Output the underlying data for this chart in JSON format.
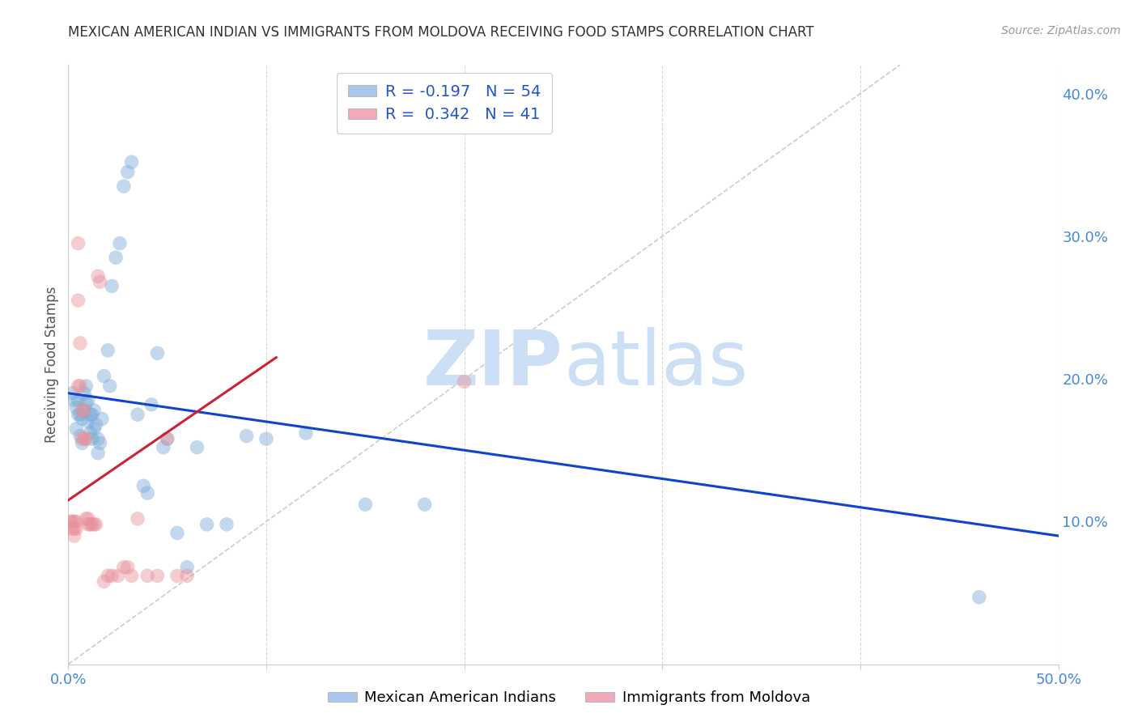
{
  "title": "MEXICAN AMERICAN INDIAN VS IMMIGRANTS FROM MOLDOVA RECEIVING FOOD STAMPS CORRELATION CHART",
  "source": "Source: ZipAtlas.com",
  "ylabel": "Receiving Food Stamps",
  "xlim": [
    0.0,
    0.5
  ],
  "ylim": [
    0.0,
    0.42
  ],
  "xticks": [
    0.0,
    0.1,
    0.2,
    0.3,
    0.4,
    0.5
  ],
  "xtick_labels": [
    "0.0%",
    "",
    "",
    "",
    "",
    "50.0%"
  ],
  "yticks": [
    0.1,
    0.2,
    0.3,
    0.4
  ],
  "ytick_labels": [
    "10.0%",
    "20.0%",
    "30.0%",
    "40.0%"
  ],
  "background_color": "#ffffff",
  "grid_color": "#d8d8d8",
  "title_color": "#333333",
  "watermark_zip": "ZIP",
  "watermark_atlas": "atlas",
  "watermark_color": "#ccdff5",
  "legend_label1": "R = -0.197   N = 54",
  "legend_label2": "R =  0.342   N = 41",
  "legend_color_blue": "#aac8ee",
  "legend_color_pink": "#f0aaba",
  "blue_color": "#7aaad8",
  "pink_color": "#e8909a",
  "blue_line_color": "#1144cc",
  "pink_line_color": "#cc2233",
  "diagonal_line_color": "#cccccc",
  "label_blue": "Mexican American Indians",
  "label_pink": "Immigrants from Moldova",
  "blue_scatter_x": [
    0.002,
    0.003,
    0.004,
    0.004,
    0.005,
    0.005,
    0.006,
    0.006,
    0.007,
    0.007,
    0.008,
    0.008,
    0.009,
    0.009,
    0.01,
    0.01,
    0.011,
    0.011,
    0.012,
    0.012,
    0.013,
    0.013,
    0.014,
    0.015,
    0.015,
    0.016,
    0.017,
    0.018,
    0.02,
    0.021,
    0.022,
    0.024,
    0.026,
    0.028,
    0.03,
    0.032,
    0.035,
    0.038,
    0.04,
    0.042,
    0.045,
    0.048,
    0.05,
    0.055,
    0.06,
    0.065,
    0.07,
    0.08,
    0.09,
    0.1,
    0.12,
    0.15,
    0.18,
    0.46
  ],
  "blue_scatter_y": [
    0.19,
    0.185,
    0.18,
    0.165,
    0.185,
    0.175,
    0.175,
    0.16,
    0.172,
    0.155,
    0.19,
    0.178,
    0.195,
    0.183,
    0.185,
    0.17,
    0.175,
    0.162,
    0.175,
    0.158,
    0.178,
    0.165,
    0.168,
    0.158,
    0.148,
    0.155,
    0.172,
    0.202,
    0.22,
    0.195,
    0.265,
    0.285,
    0.295,
    0.335,
    0.345,
    0.352,
    0.175,
    0.125,
    0.12,
    0.182,
    0.218,
    0.152,
    0.158,
    0.092,
    0.068,
    0.152,
    0.098,
    0.098,
    0.16,
    0.158,
    0.162,
    0.112,
    0.112,
    0.047
  ],
  "pink_scatter_x": [
    0.001,
    0.002,
    0.002,
    0.003,
    0.003,
    0.003,
    0.004,
    0.004,
    0.005,
    0.005,
    0.005,
    0.006,
    0.006,
    0.007,
    0.007,
    0.008,
    0.008,
    0.009,
    0.009,
    0.01,
    0.01,
    0.011,
    0.012,
    0.013,
    0.014,
    0.015,
    0.016,
    0.018,
    0.02,
    0.022,
    0.025,
    0.028,
    0.03,
    0.032,
    0.035,
    0.04,
    0.045,
    0.05,
    0.055,
    0.06,
    0.2
  ],
  "pink_scatter_y": [
    0.1,
    0.1,
    0.095,
    0.1,
    0.095,
    0.09,
    0.1,
    0.095,
    0.295,
    0.255,
    0.195,
    0.225,
    0.195,
    0.178,
    0.158,
    0.178,
    0.158,
    0.158,
    0.102,
    0.102,
    0.098,
    0.098,
    0.098,
    0.098,
    0.098,
    0.272,
    0.268,
    0.058,
    0.062,
    0.062,
    0.062,
    0.068,
    0.068,
    0.062,
    0.102,
    0.062,
    0.062,
    0.158,
    0.062,
    0.062,
    0.198
  ],
  "blue_line_x": [
    0.0,
    0.5
  ],
  "blue_line_y": [
    0.19,
    0.09
  ],
  "pink_line_x": [
    0.0,
    0.105
  ],
  "pink_line_y": [
    0.115,
    0.215
  ],
  "diag_line_x": [
    0.0,
    0.42
  ],
  "diag_line_y": [
    0.0,
    0.42
  ]
}
